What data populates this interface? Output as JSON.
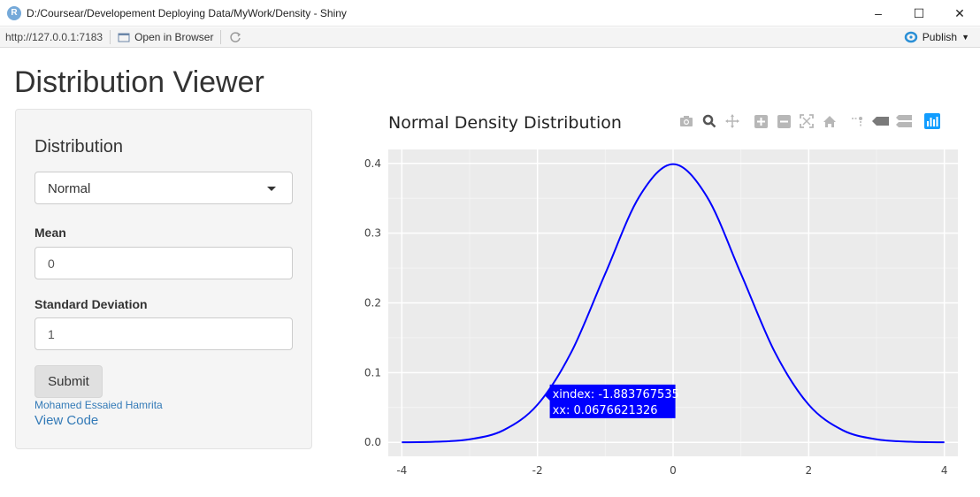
{
  "window": {
    "title": "D:/Coursear/Developement Deploying Data/MyWork/Density - Shiny",
    "app_icon_letter": "R",
    "controls": [
      "–",
      "☐",
      "✕"
    ]
  },
  "toolbar": {
    "url": "http://127.0.0.1:7183",
    "open_in_browser": "Open in Browser",
    "publish": "Publish"
  },
  "page": {
    "title": "Distribution Viewer"
  },
  "sidebar": {
    "heading": "Distribution",
    "distribution_selected": "Normal",
    "mean_label": "Mean",
    "mean_value": "0",
    "sd_label": "Standard Deviation",
    "sd_value": "1",
    "submit_label": "Submit",
    "author": "Mohamed Essaied Hamrita",
    "view_code": "View Code"
  },
  "plot": {
    "modebar_icons": [
      "camera-icon",
      "zoom-icon",
      "pan-icon",
      "zoom-in-icon",
      "zoom-out-icon",
      "autoscale-icon",
      "home-icon",
      "spike-lines-icon",
      "hover-closest-icon",
      "hover-compare-icon",
      "plotly-logo-icon"
    ],
    "tooltip": {
      "line1": "xindex: -1.883767535",
      "line2": "xx: 0.0676621326"
    }
  },
  "chart_data": {
    "type": "line",
    "title": "Normal Density Distribution",
    "xlabel": "",
    "ylabel": "",
    "xlim": [
      -4.2,
      4.2
    ],
    "ylim": [
      -0.02,
      0.42
    ],
    "x_ticks": [
      -4,
      -2,
      0,
      2,
      4
    ],
    "y_ticks": [
      0.0,
      0.1,
      0.2,
      0.3,
      0.4
    ],
    "x_tick_labels": [
      "-4",
      "-2",
      "0",
      "2",
      "4"
    ],
    "y_tick_labels": [
      "0.0",
      "0.1",
      "0.2",
      "0.3",
      "0.4"
    ],
    "grid": true,
    "series": [
      {
        "color": "#0000ff",
        "x": [
          -4,
          -3.5,
          -3,
          -2.5,
          -2,
          -1.5,
          -1,
          -0.5,
          0,
          0.5,
          1,
          1.5,
          2,
          2.5,
          3,
          3.5,
          4
        ],
        "y": [
          0.0001,
          0.0009,
          0.0044,
          0.0175,
          0.054,
          0.1295,
          0.242,
          0.3521,
          0.3989,
          0.3521,
          0.242,
          0.1295,
          0.054,
          0.0175,
          0.0044,
          0.0009,
          0.0001
        ]
      }
    ],
    "highlight_point": {
      "x": -1.883767535,
      "y": 0.0676621326
    }
  },
  "colors": {
    "line": "#0000ff",
    "plot_bg": "#ebebeb",
    "link": "#337ab7",
    "tooltip_bg": "#0000ff"
  }
}
